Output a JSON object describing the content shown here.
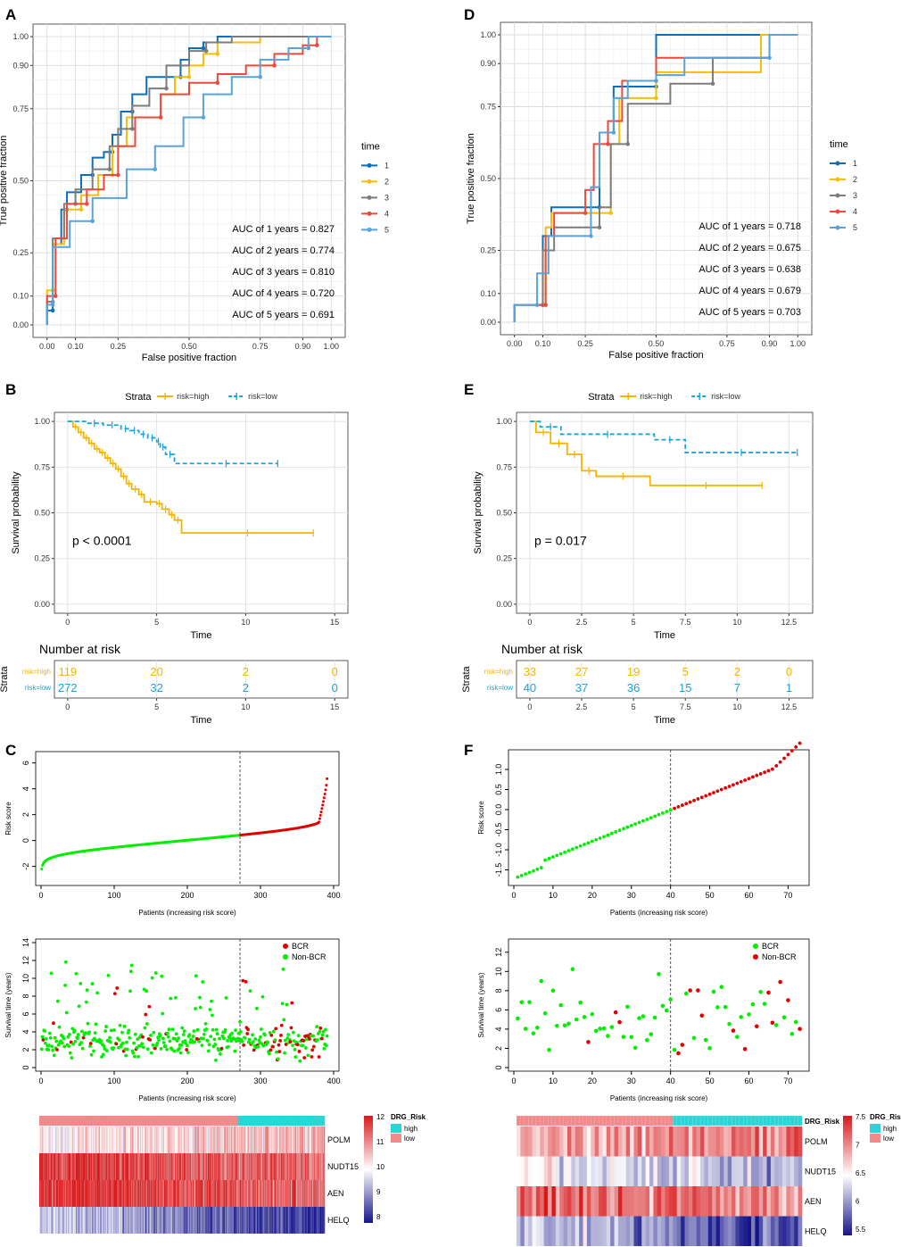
{
  "panel_letters": [
    "A",
    "B",
    "C",
    "D",
    "E",
    "F"
  ],
  "colors": {
    "t1": "#0e6fb8",
    "t2": "#f5be0b",
    "t3": "#7d7d7d",
    "t4": "#ea4a3d",
    "t5": "#5aa3d8",
    "high": "#f4b400",
    "low": "#1aa3db",
    "green": "#00ee00",
    "red": "#e00000",
    "heat_high": "#d7191c",
    "heat_mid": "#ffffff",
    "heat_low": "#15158a",
    "group_high": "#27d7d7",
    "group_low": "#f2898a"
  },
  "chart_data": [
    {
      "panel": "A",
      "type": "line",
      "xlabel": "False positive fraction",
      "ylabel": "True positive fraction",
      "xticks": [
        "0.00",
        "0.10",
        "0.25",
        "0.50",
        "0.75",
        "0.90",
        "1.00"
      ],
      "yticks": [
        "0.00",
        "0.10",
        "0.25",
        "0.50",
        "0.75",
        "0.90",
        "1.00"
      ],
      "legend_title": "time",
      "series": [
        {
          "name": "1",
          "auc_label": "AUC of 1 years = 0.827",
          "x": [
            0,
            0,
            0.02,
            0.02,
            0.05,
            0.05,
            0.07,
            0.07,
            0.12,
            0.12,
            0.16,
            0.16,
            0.2,
            0.2,
            0.23,
            0.23,
            0.26,
            0.26,
            0.3,
            0.3,
            0.35,
            0.35,
            0.47,
            0.47,
            0.5,
            0.5,
            0.55,
            0.55,
            0.6,
            0.6,
            1
          ],
          "y": [
            0,
            0.05,
            0.05,
            0.28,
            0.28,
            0.4,
            0.4,
            0.46,
            0.46,
            0.52,
            0.52,
            0.58,
            0.58,
            0.6,
            0.6,
            0.66,
            0.66,
            0.74,
            0.74,
            0.8,
            0.8,
            0.86,
            0.86,
            0.92,
            0.92,
            0.96,
            0.96,
            0.98,
            0.98,
            1,
            1
          ]
        },
        {
          "name": "2",
          "auc_label": "AUC of 2 years = 0.774",
          "x": [
            0,
            0,
            0.02,
            0.02,
            0.06,
            0.06,
            0.12,
            0.12,
            0.18,
            0.18,
            0.23,
            0.23,
            0.28,
            0.28,
            0.4,
            0.4,
            0.45,
            0.45,
            0.5,
            0.5,
            0.55,
            0.55,
            0.6,
            0.6,
            0.75,
            0.75,
            1
          ],
          "y": [
            0,
            0.12,
            0.12,
            0.28,
            0.28,
            0.4,
            0.4,
            0.45,
            0.45,
            0.52,
            0.52,
            0.62,
            0.62,
            0.72,
            0.72,
            0.8,
            0.8,
            0.86,
            0.86,
            0.9,
            0.9,
            0.94,
            0.94,
            0.98,
            0.98,
            1,
            1
          ]
        },
        {
          "name": "3",
          "auc_label": "AUC of 3 years = 0.810",
          "x": [
            0,
            0,
            0.02,
            0.02,
            0.06,
            0.06,
            0.1,
            0.1,
            0.16,
            0.16,
            0.22,
            0.22,
            0.25,
            0.25,
            0.3,
            0.3,
            0.36,
            0.36,
            0.42,
            0.42,
            0.5,
            0.5,
            0.56,
            0.56,
            0.65,
            0.65,
            1
          ],
          "y": [
            0,
            0.08,
            0.08,
            0.3,
            0.3,
            0.42,
            0.42,
            0.47,
            0.47,
            0.54,
            0.54,
            0.62,
            0.62,
            0.68,
            0.68,
            0.76,
            0.76,
            0.82,
            0.82,
            0.9,
            0.9,
            0.95,
            0.95,
            0.98,
            0.98,
            1,
            1
          ]
        },
        {
          "name": "4",
          "auc_label": "AUC of 4 years = 0.720",
          "x": [
            0,
            0,
            0.03,
            0.03,
            0.07,
            0.07,
            0.14,
            0.14,
            0.2,
            0.2,
            0.25,
            0.25,
            0.31,
            0.31,
            0.4,
            0.4,
            0.5,
            0.5,
            0.6,
            0.6,
            0.7,
            0.7,
            0.8,
            0.8,
            0.9,
            0.9,
            0.95,
            0.95,
            1
          ],
          "y": [
            0,
            0.1,
            0.1,
            0.3,
            0.3,
            0.42,
            0.42,
            0.47,
            0.47,
            0.52,
            0.52,
            0.62,
            0.62,
            0.72,
            0.72,
            0.8,
            0.8,
            0.84,
            0.84,
            0.87,
            0.87,
            0.9,
            0.9,
            0.94,
            0.94,
            0.97,
            0.97,
            1,
            1
          ]
        },
        {
          "name": "5",
          "auc_label": "AUC of 5 years = 0.691",
          "x": [
            0,
            0,
            0.02,
            0.02,
            0.08,
            0.08,
            0.16,
            0.16,
            0.28,
            0.28,
            0.38,
            0.38,
            0.48,
            0.48,
            0.55,
            0.55,
            0.65,
            0.65,
            0.75,
            0.75,
            0.85,
            0.85,
            0.92,
            0.92,
            1
          ],
          "y": [
            0,
            0.07,
            0.07,
            0.27,
            0.27,
            0.36,
            0.36,
            0.44,
            0.44,
            0.54,
            0.54,
            0.62,
            0.62,
            0.72,
            0.72,
            0.8,
            0.8,
            0.86,
            0.86,
            0.92,
            0.92,
            0.96,
            0.96,
            1,
            1
          ]
        }
      ]
    },
    {
      "panel": "D",
      "type": "line",
      "xlabel": "False positive fraction",
      "ylabel": "True positive fraction",
      "xticks": [
        "0.00",
        "0.10",
        "0.25",
        "0.50",
        "0.75",
        "0.90",
        "1.00"
      ],
      "yticks": [
        "0.00",
        "0.10",
        "0.25",
        "0.50",
        "0.75",
        "0.90",
        "1.00"
      ],
      "legend_title": "time",
      "series": [
        {
          "name": "1",
          "auc_label": "AUC of 1 years = 0.718",
          "x": [
            0,
            0,
            0.1,
            0.1,
            0.13,
            0.13,
            0.3,
            0.3,
            0.35,
            0.35,
            0.5,
            0.5,
            1
          ],
          "y": [
            0,
            0.06,
            0.06,
            0.3,
            0.3,
            0.4,
            0.4,
            0.66,
            0.66,
            0.82,
            0.82,
            1,
            1
          ]
        },
        {
          "name": "2",
          "auc_label": "AUC of 2 years = 0.675",
          "x": [
            0,
            0,
            0.11,
            0.11,
            0.13,
            0.13,
            0.34,
            0.34,
            0.37,
            0.37,
            0.5,
            0.5,
            0.87,
            0.87,
            1
          ],
          "y": [
            0,
            0.06,
            0.06,
            0.33,
            0.33,
            0.38,
            0.38,
            0.62,
            0.62,
            0.78,
            0.78,
            0.87,
            0.87,
            1,
            1
          ]
        },
        {
          "name": "3",
          "auc_label": "AUC of 3 years = 0.638",
          "x": [
            0,
            0,
            0.1,
            0.1,
            0.14,
            0.14,
            0.3,
            0.3,
            0.34,
            0.34,
            0.4,
            0.4,
            0.55,
            0.55,
            0.7,
            0.7,
            0.9,
            0.9,
            1
          ],
          "y": [
            0,
            0.06,
            0.06,
            0.25,
            0.25,
            0.33,
            0.33,
            0.4,
            0.4,
            0.62,
            0.62,
            0.76,
            0.76,
            0.83,
            0.83,
            0.92,
            0.92,
            1,
            1
          ]
        },
        {
          "name": "4",
          "auc_label": "AUC of 4 years = 0.679",
          "x": [
            0,
            0,
            0.11,
            0.11,
            0.14,
            0.14,
            0.25,
            0.25,
            0.28,
            0.28,
            0.33,
            0.33,
            0.38,
            0.38,
            0.5,
            0.5,
            0.9,
            0.9,
            1
          ],
          "y": [
            0,
            0.06,
            0.06,
            0.3,
            0.3,
            0.38,
            0.38,
            0.46,
            0.46,
            0.62,
            0.62,
            0.7,
            0.7,
            0.84,
            0.84,
            0.92,
            0.92,
            1,
            1
          ]
        },
        {
          "name": "5",
          "auc_label": "AUC of 5 years = 0.703",
          "x": [
            0,
            0,
            0.08,
            0.08,
            0.12,
            0.12,
            0.27,
            0.27,
            0.3,
            0.3,
            0.35,
            0.35,
            0.4,
            0.4,
            0.5,
            0.5,
            0.6,
            0.6,
            0.9,
            0.9,
            1
          ],
          "y": [
            0,
            0.06,
            0.06,
            0.17,
            0.17,
            0.3,
            0.3,
            0.47,
            0.47,
            0.66,
            0.66,
            0.78,
            0.78,
            0.84,
            0.84,
            0.86,
            0.86,
            0.92,
            0.92,
            1,
            1
          ]
        }
      ]
    },
    {
      "panel": "B",
      "type": "line",
      "legend_title": "Strata",
      "xlabel": "Time",
      "ylabel": "Survival probability",
      "xticks": [
        "0",
        "5",
        "10",
        "15"
      ],
      "yticks": [
        "0.00",
        "0.25",
        "0.50",
        "0.75",
        "1.00"
      ],
      "xlim": [
        0,
        15
      ],
      "pvalue": "p < 0.0001",
      "series": [
        {
          "name": "risk=high",
          "x": [
            0,
            0.3,
            0.6,
            0.9,
            1.2,
            1.5,
            1.8,
            2.1,
            2.4,
            2.7,
            3.0,
            3.3,
            3.6,
            4.0,
            4.3,
            5.0,
            5.3,
            5.7,
            6.0,
            6.4,
            13.8
          ],
          "y": [
            1,
            0.97,
            0.94,
            0.91,
            0.88,
            0.85,
            0.83,
            0.8,
            0.77,
            0.74,
            0.7,
            0.66,
            0.63,
            0.6,
            0.56,
            0.55,
            0.52,
            0.49,
            0.46,
            0.39,
            0.39
          ]
        },
        {
          "name": "risk=low",
          "x": [
            0,
            1,
            2,
            3,
            3.5,
            4,
            4.5,
            5,
            5.2,
            5.5,
            6,
            11.8
          ],
          "y": [
            1,
            0.99,
            0.98,
            0.96,
            0.95,
            0.93,
            0.91,
            0.89,
            0.86,
            0.82,
            0.77,
            0.77
          ]
        }
      ],
      "risk_table": {
        "title": "Number at risk",
        "ylabel": "Strata",
        "rows": [
          {
            "label": "risk=high",
            "values": [
              "119",
              "20",
              "2",
              "0"
            ]
          },
          {
            "label": "risk=low",
            "values": [
              "272",
              "32",
              "2",
              "0"
            ]
          }
        ]
      }
    },
    {
      "panel": "E",
      "type": "line",
      "legend_title": "Strata",
      "xlabel": "Time",
      "ylabel": "Survival probability",
      "xticks": [
        "0",
        "2.5",
        "5",
        "7.5",
        "10",
        "12.5"
      ],
      "yticks": [
        "0.00",
        "0.25",
        "0.50",
        "0.75",
        "1.00"
      ],
      "xlim": [
        0,
        13
      ],
      "pvalue": "p = 0.017",
      "series": [
        {
          "name": "risk=high",
          "x": [
            0,
            0.3,
            1.0,
            1.8,
            2.5,
            3.2,
            5.8,
            11.2
          ],
          "y": [
            1,
            0.94,
            0.88,
            0.82,
            0.73,
            0.7,
            0.65,
            0.65
          ]
        },
        {
          "name": "risk=low",
          "x": [
            0,
            0.5,
            1.5,
            6.0,
            7.5,
            12.9
          ],
          "y": [
            1,
            0.97,
            0.93,
            0.9,
            0.83,
            0.83
          ]
        }
      ],
      "risk_table": {
        "title": "Number at risk",
        "ylabel": "Strata",
        "rows": [
          {
            "label": "risk=high",
            "values": [
              "33",
              "27",
              "19",
              "5",
              "2",
              "0"
            ]
          },
          {
            "label": "risk=low",
            "values": [
              "40",
              "37",
              "36",
              "15",
              "7",
              "1"
            ]
          }
        ]
      }
    },
    {
      "panel": "C",
      "type": "scatter",
      "n": 391,
      "cutoff": 272,
      "risk": {
        "ylabel": "Risk score",
        "xlabel": "Patients (increasing risk score)",
        "xticks": [
          "0",
          "100",
          "200",
          "300",
          "400"
        ],
        "yticks": [
          "-2",
          "0",
          "2",
          "4",
          "6"
        ],
        "ylim": [
          -3.2,
          6.6
        ]
      },
      "survival": {
        "ylabel": "Survival time (years)",
        "xlabel": "Patients (increasing risk score)",
        "xticks": [
          "0",
          "100",
          "200",
          "300",
          "400"
        ],
        "yticks": [
          "0",
          "2",
          "4",
          "6",
          "8",
          "10",
          "12",
          "14"
        ],
        "ylim": [
          0,
          14
        ],
        "legend": [
          "BCR",
          "Non-BCR"
        ]
      },
      "heatmap": {
        "genes": [
          "POLM",
          "NUDT15",
          "AEN",
          "HELQ"
        ],
        "legend_title": "DRG_Risk",
        "groups": [
          "high",
          "low"
        ],
        "scale": [
          "12",
          "11",
          "10",
          "9",
          "8"
        ],
        "means": [
          0.2,
          0.75,
          0.8,
          -0.55
        ]
      }
    },
    {
      "panel": "F",
      "type": "scatter",
      "n": 73,
      "cutoff": 40,
      "risk": {
        "ylabel": "Risk score",
        "xlabel": "Patients (increasing risk score)",
        "xticks": [
          "0",
          "10",
          "20",
          "30",
          "40",
          "50",
          "60",
          "70"
        ],
        "yticks": [
          "-1.5",
          "-1.0",
          "-0.5",
          "0.0",
          "0.5",
          "1.0"
        ],
        "ylim": [
          -1.8,
          1.4
        ]
      },
      "survival": {
        "ylabel": "Survival time (years)",
        "xlabel": "Patients (increasing risk score)",
        "xticks": [
          "0",
          "10",
          "20",
          "30",
          "40",
          "50",
          "60",
          "70"
        ],
        "yticks": [
          "0",
          "2",
          "4",
          "6",
          "8",
          "10",
          "12"
        ],
        "ylim": [
          0,
          13
        ],
        "legend": [
          "BCR",
          "Non-BCR"
        ]
      },
      "heatmap": {
        "genes": [
          "POLM",
          "NUDT15",
          "AEN",
          "HELQ"
        ],
        "legend_title": "DRG_Risk",
        "groups": [
          "high",
          "low"
        ],
        "scale": [
          "7.5",
          "7",
          "6.5",
          "6",
          "5.5"
        ],
        "means": [
          0.45,
          -0.2,
          0.6,
          -0.5
        ]
      }
    }
  ]
}
